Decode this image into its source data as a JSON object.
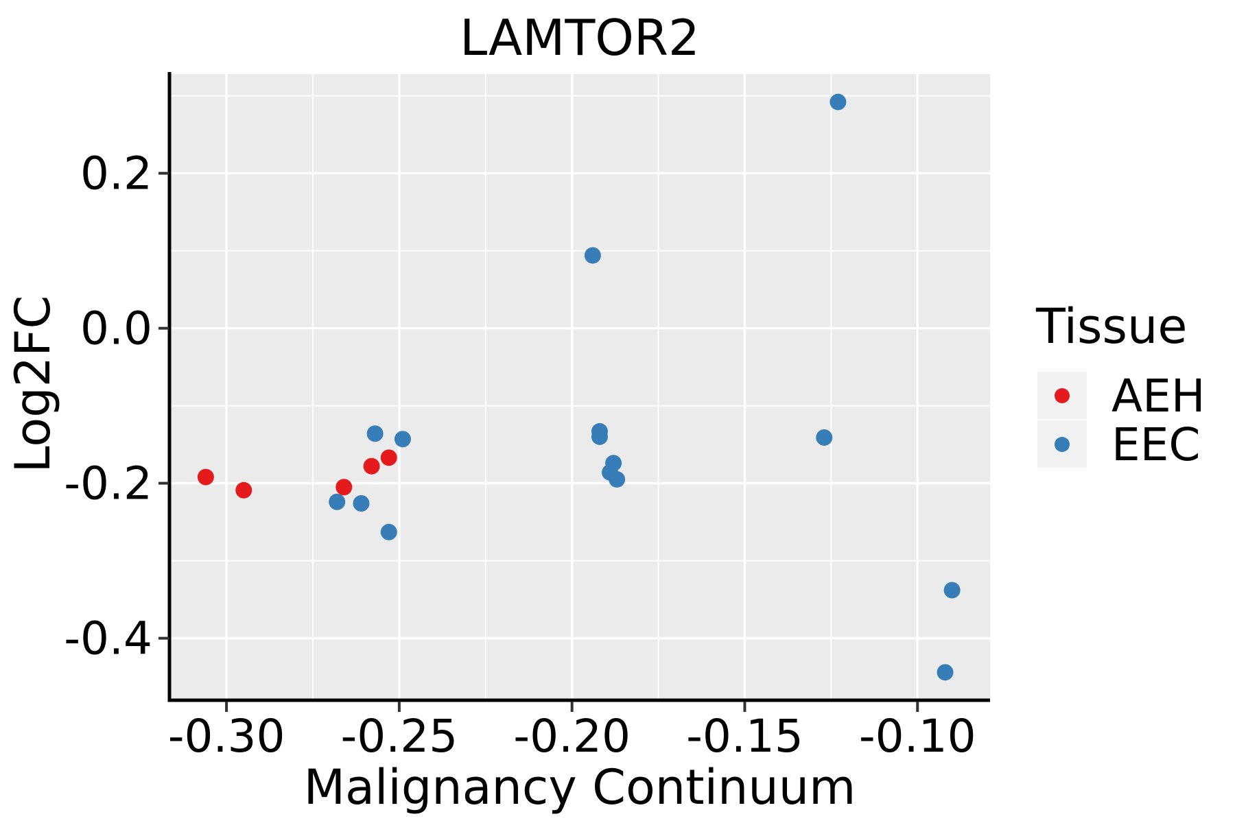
{
  "title": "LAMTOR2",
  "colors": {
    "panel_bg": "#EBEBEB",
    "grid": "#FFFFFF",
    "spine": "#000000",
    "tick": "#333333",
    "legend_key_bg": "#F2F2F2",
    "aeh_red": "#E41A1C",
    "eec_blue": "#377EB8"
  },
  "axes": {
    "x": {
      "label": "Malignancy Continuum",
      "tick_labels": [
        "-0.30",
        "-0.25",
        "-0.20",
        "-0.15",
        "-0.10"
      ],
      "tick_values": [
        -0.3,
        -0.25,
        -0.2,
        -0.15,
        -0.1
      ],
      "minor_values": [
        -0.275,
        -0.225,
        -0.175,
        -0.125
      ]
    },
    "y": {
      "label": "Log2FC",
      "tick_labels": [
        "0.2",
        "0.0",
        "-0.2",
        "-0.4"
      ],
      "tick_values": [
        0.2,
        0.0,
        -0.2,
        -0.4
      ],
      "minor_values": [
        0.3,
        0.1,
        -0.1,
        -0.3
      ]
    }
  },
  "legend": {
    "title": "Tissue",
    "entries": [
      {
        "label": "AEH",
        "color": "#E41A1C"
      },
      {
        "label": "EEC",
        "color": "#377EB8"
      }
    ]
  },
  "chart_data": {
    "type": "scatter",
    "title": "LAMTOR2",
    "xlabel": "Malignancy Continuum",
    "ylabel": "Log2FC",
    "xlim": [
      -0.3165,
      -0.079
    ],
    "ylim": [
      -0.48,
      0.328
    ],
    "grid": true,
    "legend_title": "Tissue",
    "legend_position": "right",
    "series": [
      {
        "name": "AEH",
        "color": "#E41A1C",
        "points": [
          [
            -0.306,
            -0.192
          ],
          [
            -0.295,
            -0.209
          ],
          [
            -0.266,
            -0.205
          ],
          [
            -0.258,
            -0.178
          ],
          [
            -0.253,
            -0.167
          ]
        ]
      },
      {
        "name": "EEC",
        "color": "#377EB8",
        "points": [
          [
            -0.268,
            -0.224
          ],
          [
            -0.261,
            -0.226
          ],
          [
            -0.257,
            -0.136
          ],
          [
            -0.253,
            -0.263
          ],
          [
            -0.249,
            -0.143
          ],
          [
            -0.194,
            0.094
          ],
          [
            -0.192,
            -0.133
          ],
          [
            -0.192,
            -0.14
          ],
          [
            -0.189,
            -0.186
          ],
          [
            -0.188,
            -0.174
          ],
          [
            -0.187,
            -0.195
          ],
          [
            -0.127,
            -0.141
          ],
          [
            -0.123,
            0.292
          ],
          [
            -0.092,
            -0.444
          ],
          [
            -0.09,
            -0.338
          ]
        ]
      }
    ]
  }
}
